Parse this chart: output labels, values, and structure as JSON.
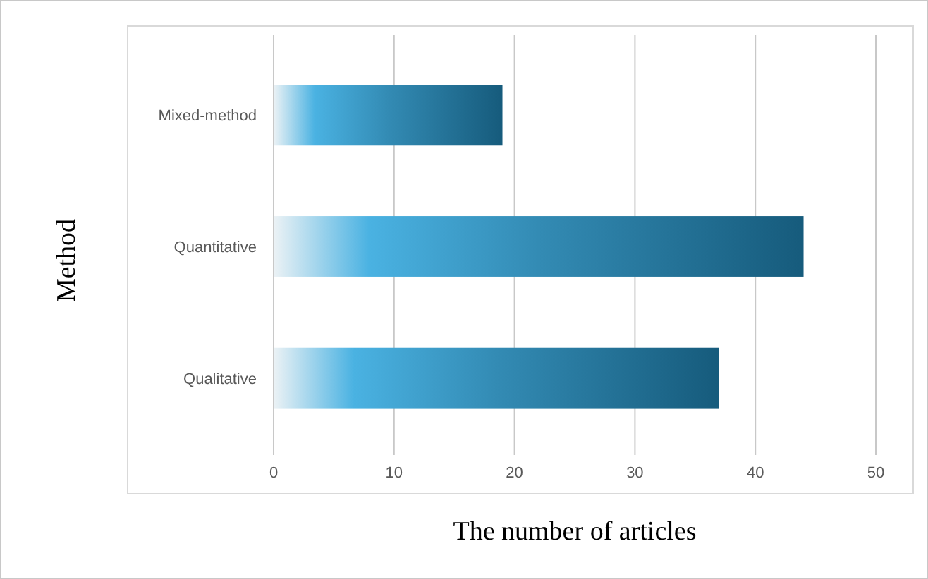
{
  "chart_data": {
    "type": "bar",
    "orientation": "horizontal",
    "xlabel": "The number of articles",
    "ylabel": "Method",
    "categories": [
      "Mixed-method",
      "Quantitative",
      "Qualitative"
    ],
    "values": [
      19,
      44,
      37
    ],
    "color": "#165b7c",
    "xlim": [
      0,
      50
    ],
    "xticks": [
      0,
      10,
      20,
      30,
      40,
      50
    ],
    "grid": "x"
  }
}
